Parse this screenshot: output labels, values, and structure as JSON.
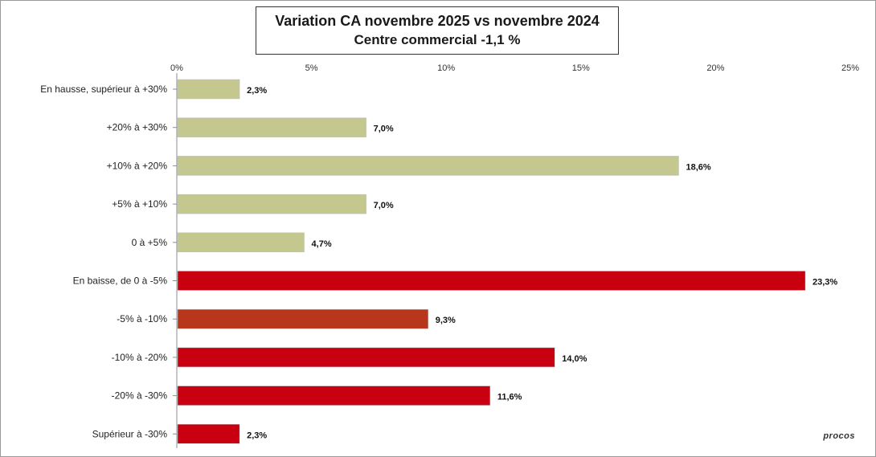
{
  "chart_data": {
    "type": "bar",
    "orientation": "horizontal",
    "title": "Variation CA novembre 2025 vs novembre 2024",
    "subtitle": "Centre commercial  -1,1 %",
    "categories": [
      "En hausse, supérieur à +30%",
      "+20% à +30%",
      "+10% à +20%",
      "+5% à +10%",
      "0 à +5%",
      "En baisse, de 0 à -5%",
      "-5% à -10%",
      "-10% à -20%",
      "-20% à -30%",
      "Supérieur à -30%"
    ],
    "values": [
      2.3,
      7.0,
      18.6,
      7.0,
      4.7,
      23.3,
      9.3,
      14.0,
      11.6,
      2.3
    ],
    "value_labels": [
      "2,3%",
      "7,0%",
      "18,6%",
      "7,0%",
      "4,7%",
      "23,3%",
      "9,3%",
      "14,0%",
      "11,6%",
      "2,3%"
    ],
    "bar_colors": [
      "#c4c88e",
      "#c4c88e",
      "#c4c88e",
      "#c4c88e",
      "#c4c88e",
      "#c8000f",
      "#b7361c",
      "#c8000f",
      "#c8000f",
      "#c8000f"
    ],
    "xlim": [
      0,
      25
    ],
    "x_ticks": [
      "0%",
      "5%",
      "10%",
      "15%",
      "20%",
      "25%"
    ],
    "axis_position": "top",
    "grid": false,
    "legend": "none"
  },
  "logo_text": "procos"
}
